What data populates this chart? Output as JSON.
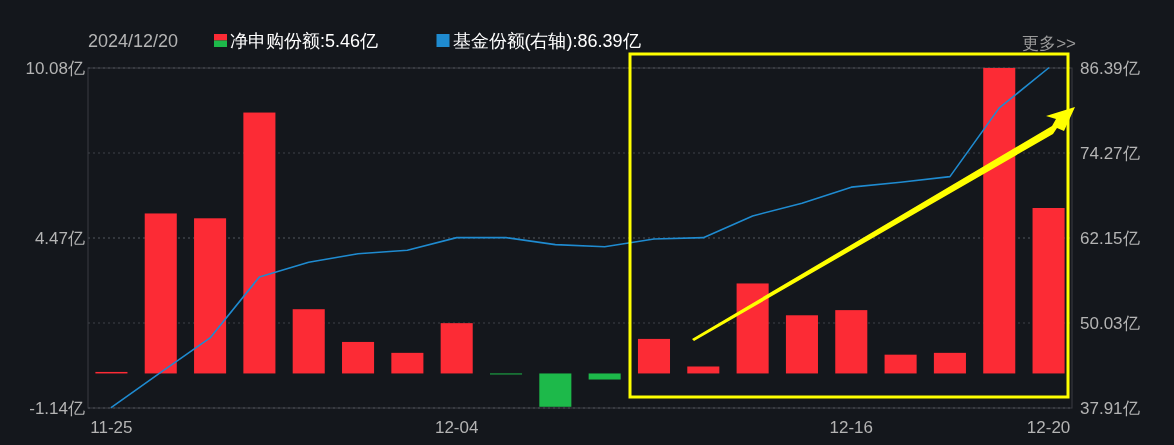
{
  "chart_data": {
    "type": "bar",
    "categories": [
      "11-25",
      null,
      null,
      null,
      null,
      null,
      null,
      "12-04",
      null,
      null,
      null,
      null,
      null,
      null,
      null,
      "12-16",
      null,
      null,
      null,
      "12-20"
    ],
    "series": [
      {
        "name": "净申购份额:5.46亿",
        "color": "#fc2b35",
        "colors": [
          "#fc2b35",
          "#fc2b35",
          "#fc2b35",
          "#fc2b35",
          "#fc2b35",
          "#fc2b35",
          "#fc2b35",
          "#fc2b35",
          "#1db94a",
          "#1db94a",
          "#1db94a",
          "#fc2b35",
          "#fc2b35",
          "#fc2b35",
          "#fc2b35",
          "#fc2b35",
          "#fc2b35",
          "#fc2b35",
          "#fc2b35",
          "#fc2b35"
        ],
        "values": [
          0.05,
          5.28,
          5.12,
          8.61,
          2.12,
          1.04,
          0.68,
          1.66,
          -0.03,
          -1.1,
          -0.2,
          1.14,
          0.23,
          2.97,
          1.92,
          2.09,
          0.62,
          0.68,
          10.08,
          5.46
        ]
      },
      {
        "name": "基金份额(右轴):86.39亿",
        "type": "line",
        "axis": "y2",
        "color": "#1f8bd0",
        "values": [
          38.0,
          43.0,
          47.9,
          56.6,
          58.7,
          59.9,
          60.4,
          62.2,
          62.2,
          61.2,
          60.9,
          62.0,
          62.2,
          65.3,
          67.1,
          69.4,
          70.1,
          70.9,
          80.7,
          86.39
        ]
      }
    ],
    "ylim": [
      -1.14,
      10.08
    ],
    "yticks": [
      {
        "value": 10.08,
        "label": "10.08亿"
      },
      {
        "value": 4.47,
        "label": "4.47亿"
      },
      {
        "value": -1.14,
        "label": "-1.14亿"
      }
    ],
    "y2lim": [
      37.91,
      86.39
    ],
    "y2ticks": [
      {
        "value": 86.39,
        "label": "86.39亿"
      },
      {
        "value": 74.27,
        "label": "74.27亿"
      },
      {
        "value": 62.15,
        "label": "62.15亿"
      },
      {
        "value": 50.03,
        "label": "50.03亿"
      },
      {
        "value": 37.91,
        "label": "37.91亿"
      }
    ],
    "grid": "y",
    "legend": "top left",
    "annotations": [
      "2024/12/20",
      "更多>>"
    ]
  }
}
